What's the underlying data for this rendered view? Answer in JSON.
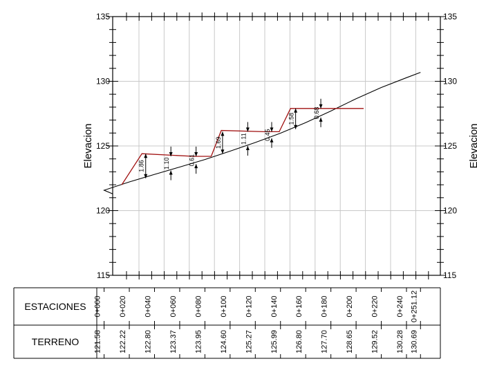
{
  "chart_data": {
    "type": "line",
    "ylabel": "Elevacion",
    "ylim": [
      115,
      135
    ],
    "y_ticks": [
      "115",
      "120",
      "125",
      "130",
      "135"
    ],
    "xlim": [
      0,
      251.12
    ],
    "grid": true,
    "series": [
      {
        "x": [
          -20,
          0,
          20,
          40,
          60,
          80,
          100,
          120,
          140,
          160,
          180,
          200,
          220,
          240,
          251.12
        ],
        "y": [
          121.3,
          121.58,
          122.22,
          122.8,
          123.37,
          123.95,
          124.6,
          125.27,
          125.99,
          126.8,
          127.7,
          128.65,
          129.52,
          130.28,
          130.69
        ]
      },
      {
        "x": [
          14,
          30,
          71,
          85,
          93,
          127,
          139,
          148,
          206
        ],
        "y": [
          122.0,
          124.4,
          124.2,
          124.2,
          126.2,
          126.1,
          126.1,
          127.9,
          127.9
        ]
      }
    ],
    "depth_markers": [
      {
        "x": 33,
        "label": "1.86",
        "dir": "bidir",
        "y_top": 124.4,
        "y_bot": 122.5
      },
      {
        "x": 53,
        "label": "1.10",
        "dir": "down",
        "y_top": 124.2,
        "y_bot": 123.1
      },
      {
        "x": 73,
        "label": "0.61",
        "dir": "down",
        "y_top": 124.2,
        "y_bot": 123.6
      },
      {
        "x": 94,
        "label": "1.69",
        "dir": "bidir",
        "y_top": 126.1,
        "y_bot": 124.4
      },
      {
        "x": 114,
        "label": "1.11",
        "dir": "down",
        "y_top": 126.1,
        "y_bot": 125.0
      },
      {
        "x": 133,
        "label": "0.45",
        "dir": "down",
        "y_top": 126.1,
        "y_bot": 125.6
      },
      {
        "x": 152,
        "label": "1.58",
        "dir": "bidir",
        "y_top": 127.9,
        "y_bot": 126.3
      },
      {
        "x": 172,
        "label": "0.68",
        "dir": "down",
        "y_top": 127.9,
        "y_bot": 127.2
      }
    ]
  },
  "table": {
    "row_label_stations": "ESTACIONES",
    "row_label_terrain": "TERRENO",
    "columns": [
      {
        "station": "0+000",
        "terrain": "121.58"
      },
      {
        "station": "0+020",
        "terrain": "122.22"
      },
      {
        "station": "0+040",
        "terrain": "122.80"
      },
      {
        "station": "0+060",
        "terrain": "123.37"
      },
      {
        "station": "0+080",
        "terrain": "123.95"
      },
      {
        "station": "0+100",
        "terrain": "124.60"
      },
      {
        "station": "0+120",
        "terrain": "125.27"
      },
      {
        "station": "0+140",
        "terrain": "125.99"
      },
      {
        "station": "0+160",
        "terrain": "126.80"
      },
      {
        "station": "0+180",
        "terrain": "127.70"
      },
      {
        "station": "0+200",
        "terrain": "128.65"
      },
      {
        "station": "0+220",
        "terrain": "129.52"
      },
      {
        "station": "0+240",
        "terrain": "130.28"
      },
      {
        "station": "0+251.12",
        "terrain": "130.69"
      }
    ]
  }
}
